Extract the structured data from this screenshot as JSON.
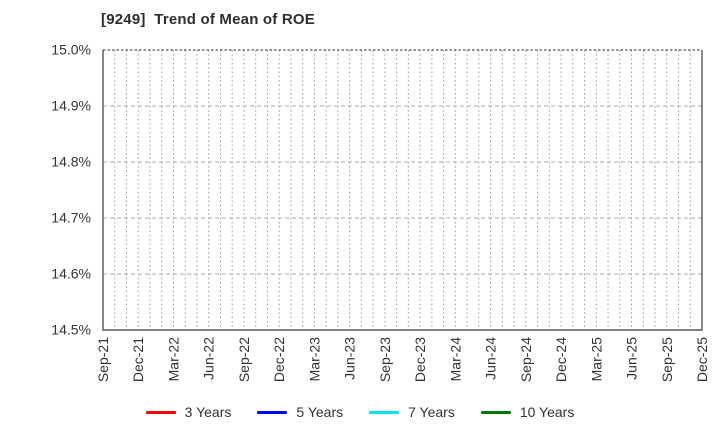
{
  "chart_data": {
    "type": "line",
    "title": "[9249]  Trend of Mean of ROE",
    "x_categories": [
      "Sep-21",
      "Dec-21",
      "Mar-22",
      "Jun-22",
      "Sep-22",
      "Dec-22",
      "Mar-23",
      "Jun-23",
      "Sep-23",
      "Dec-23",
      "Mar-24",
      "Jun-24",
      "Sep-24",
      "Dec-24",
      "Mar-25",
      "Jun-25",
      "Sep-25",
      "Dec-25"
    ],
    "x_minor_divisions_per_interval": 3,
    "y_tick_labels": [
      "15.0%",
      "14.9%",
      "14.8%",
      "14.7%",
      "14.6%",
      "14.5%"
    ],
    "ylim": [
      14.5,
      15.0
    ],
    "y_unit": "%",
    "grid": "on",
    "legend_position": "bottom",
    "series": [
      {
        "name": "3 Years",
        "color": "#ff0000",
        "values": []
      },
      {
        "name": "5 Years",
        "color": "#0000ff",
        "values": []
      },
      {
        "name": "7 Years",
        "color": "#00e5ee",
        "values": []
      },
      {
        "name": "10 Years",
        "color": "#007700",
        "values": []
      }
    ]
  },
  "style_colors": {
    "spine": "#555555",
    "grid_vertical": "#999999",
    "grid_horizontal": "#aaaaaa",
    "tick_text": "#333333",
    "title_text": "#2d2d2d",
    "background": "#ffffff"
  }
}
